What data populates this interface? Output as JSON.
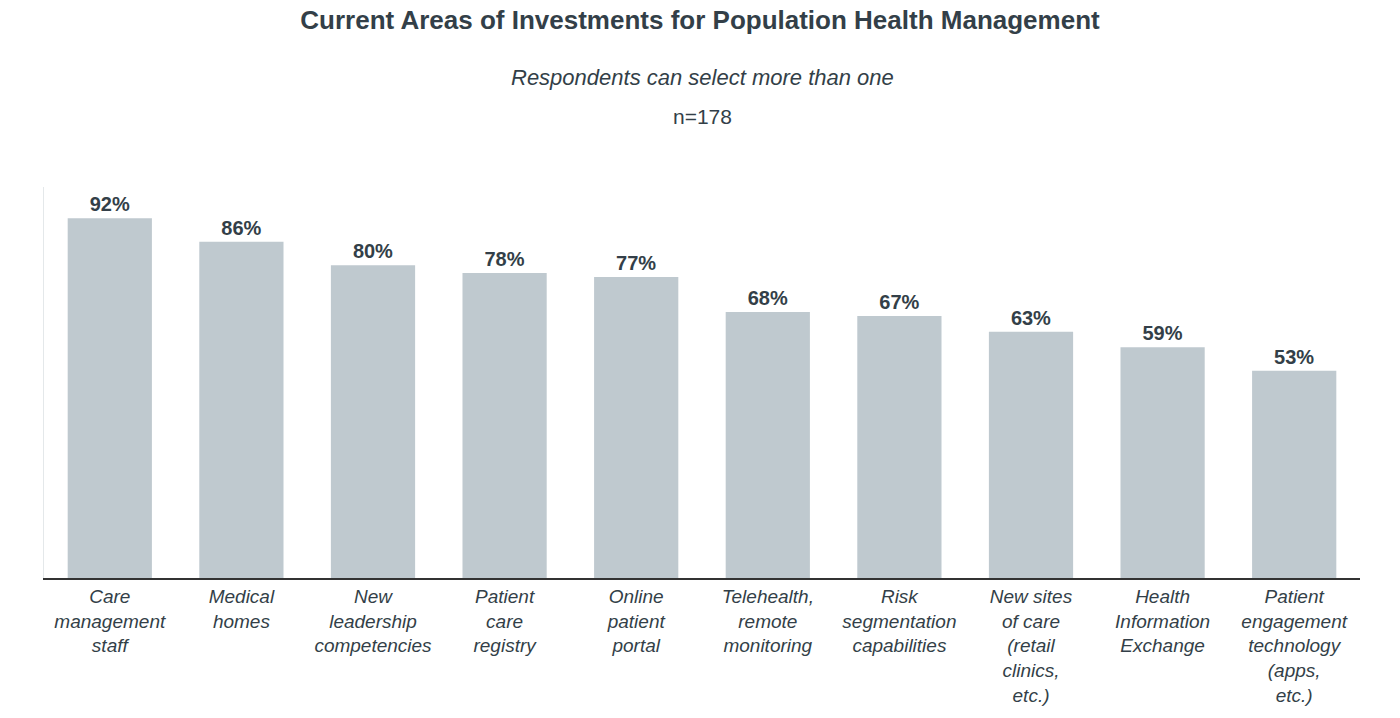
{
  "chart_data": {
    "type": "bar",
    "title": "Current Areas of Investments for Population Health Management",
    "subtitle": "Respondents can select more than one",
    "annotations": [
      "n=178"
    ],
    "categories": [
      "Care management staff",
      "Medical homes",
      "New leadership competencies",
      "Patient care registry",
      "Online patient portal",
      "Telehealth, remote monitoring",
      "Risk segmentation capabilities",
      "New sites of care (retail clinics, etc.)",
      "Health Information Exchange",
      "Patient engagement technology (apps, etc.)"
    ],
    "values": [
      92,
      86,
      80,
      78,
      77,
      68,
      67,
      63,
      59,
      53
    ],
    "value_labels": [
      "92%",
      "86%",
      "80%",
      "78%",
      "77%",
      "68%",
      "67%",
      "63%",
      "59%",
      "53%"
    ],
    "color": "#bfc9cf",
    "ylim": [
      0,
      100
    ],
    "grid": false,
    "data_labels": true,
    "tick_labels": "x"
  }
}
